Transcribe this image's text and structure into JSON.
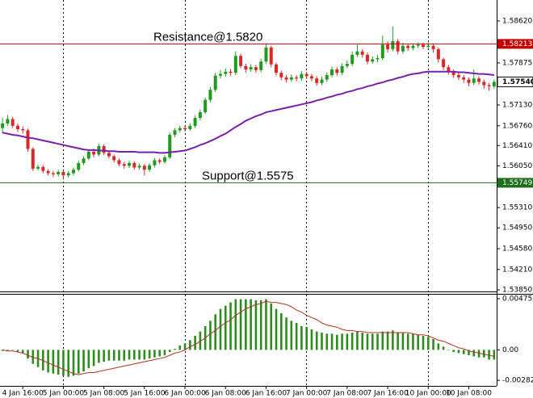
{
  "chart_data": [
    {
      "type": "candlestick",
      "categories": [
        null,
        null,
        null,
        null,
        "4 Jan 16:00",
        null,
        null,
        null,
        null,
        null,
        null,
        null,
        "5 Jan 00:00",
        null,
        null,
        null,
        null,
        null,
        null,
        null,
        "5 Jan 08:00",
        null,
        null,
        null,
        null,
        null,
        null,
        null,
        "5 Jan 16:00",
        null,
        null,
        null,
        null,
        null,
        null,
        null,
        "6 Jan 00:00",
        null,
        null,
        null,
        null,
        null,
        null,
        null,
        "6 Jan 08:00",
        null,
        null,
        null,
        null,
        null,
        null,
        null,
        "6 Jan 16:00",
        null,
        null,
        null,
        null,
        null,
        null,
        null,
        "7 Jan 00:00",
        null,
        null,
        null,
        null,
        null,
        null,
        null,
        "7 Jan 08:00",
        null,
        null,
        null,
        null,
        null,
        null,
        null,
        "7 Jan 16:00",
        null,
        null,
        null,
        null,
        null,
        null,
        null,
        "10 Jan 00:00",
        null,
        null,
        null,
        null,
        null,
        null,
        null,
        "10 Jan 08:00",
        null,
        null,
        null,
        null,
        null
      ],
      "open": [
        1.5672,
        1.568,
        1.5688,
        1.5676,
        1.567,
        1.5668,
        1.5635,
        1.56,
        1.5603,
        1.5596,
        1.5592,
        1.559,
        1.5594,
        1.5588,
        1.5592,
        1.5598,
        1.561,
        1.5618,
        1.563,
        1.5625,
        1.564,
        1.5628,
        1.5622,
        1.5615,
        1.5608,
        1.5605,
        1.561,
        1.5602,
        1.5605,
        1.5598,
        1.5606,
        1.5615,
        1.5612,
        1.562,
        1.566,
        1.5668,
        1.5672,
        1.567,
        1.5676,
        1.569,
        1.57,
        1.5722,
        1.574,
        1.5765,
        1.5768,
        1.5772,
        1.577,
        1.58,
        1.5782,
        1.5776,
        1.578,
        1.5775,
        1.579,
        1.5815,
        1.5785,
        1.577,
        1.5762,
        1.5758,
        1.5762,
        1.576,
        1.5768,
        1.5764,
        1.576,
        1.5752,
        1.5758,
        1.5766,
        1.5776,
        1.577,
        1.5782,
        1.5786,
        1.5802,
        1.5808,
        1.5802,
        1.579,
        1.5794,
        1.5796,
        1.582,
        1.5812,
        1.5826,
        1.5808,
        1.5818,
        1.5814,
        1.5818,
        1.582,
        1.5816,
        1.5818,
        1.5812,
        1.5794,
        1.578,
        1.5772,
        1.5766,
        1.5762,
        1.5758,
        1.5752,
        1.576,
        1.5754,
        1.5748,
        1.5746
      ],
      "high": [
        1.569,
        1.5695,
        1.5692,
        1.568,
        1.5675,
        1.5671,
        1.5638,
        1.5607,
        1.5606,
        1.5599,
        1.5596,
        1.5598,
        1.5597,
        1.5596,
        1.5602,
        1.5614,
        1.5622,
        1.5634,
        1.5636,
        1.5644,
        1.5643,
        1.5632,
        1.5625,
        1.5618,
        1.5612,
        1.5614,
        1.5613,
        1.5609,
        1.5608,
        1.561,
        1.5619,
        1.5618,
        1.5624,
        1.5664,
        1.5672,
        1.5676,
        1.5676,
        1.568,
        1.5694,
        1.5705,
        1.5726,
        1.5745,
        1.577,
        1.5775,
        1.5778,
        1.5777,
        1.5808,
        1.5804,
        1.5786,
        1.5785,
        1.5784,
        1.5795,
        1.5822,
        1.5818,
        1.5788,
        1.5774,
        1.5766,
        1.5767,
        1.5766,
        1.5773,
        1.5772,
        1.5768,
        1.5764,
        1.5763,
        1.5771,
        1.5781,
        1.578,
        1.5787,
        1.5792,
        1.5808,
        1.582,
        1.5812,
        1.5806,
        1.5799,
        1.5802,
        1.5836,
        1.5826,
        1.5852,
        1.583,
        1.5823,
        1.5822,
        1.5822,
        1.5824,
        1.5823,
        1.5824,
        1.5822,
        1.5815,
        1.5797,
        1.5784,
        1.5776,
        1.577,
        1.5766,
        1.5762,
        1.5776,
        1.5764,
        1.5758,
        1.5752,
        1.5758
      ],
      "low": [
        1.5662,
        1.5676,
        1.5672,
        1.5665,
        1.5662,
        1.563,
        1.5596,
        1.5597,
        1.5592,
        1.5588,
        1.5585,
        1.5586,
        1.5582,
        1.5584,
        1.5588,
        1.5595,
        1.5606,
        1.5615,
        1.562,
        1.5622,
        1.5624,
        1.5618,
        1.5611,
        1.5604,
        1.56,
        1.5601,
        1.5598,
        1.5598,
        1.5588,
        1.5594,
        1.5602,
        1.5608,
        1.5609,
        1.5617,
        1.5656,
        1.5664,
        1.5666,
        1.5667,
        1.5672,
        1.5686,
        1.5697,
        1.5718,
        1.5736,
        1.576,
        1.5763,
        1.5765,
        1.5766,
        1.5778,
        1.577,
        1.5772,
        1.577,
        1.5771,
        1.5786,
        1.578,
        1.5765,
        1.5757,
        1.5753,
        1.5754,
        1.5755,
        1.5756,
        1.5759,
        1.5755,
        1.5747,
        1.5748,
        1.5754,
        1.5762,
        1.5765,
        1.5766,
        1.5778,
        1.5782,
        1.5798,
        1.5797,
        1.5785,
        1.5786,
        1.5789,
        1.5792,
        1.5806,
        1.5808,
        1.5803,
        1.5804,
        1.5809,
        1.581,
        1.5814,
        1.5812,
        1.5812,
        1.5806,
        1.5788,
        1.5775,
        1.5767,
        1.5761,
        1.5757,
        1.5752,
        1.5746,
        1.5748,
        1.5749,
        1.5742,
        1.5738,
        1.5742
      ],
      "close": [
        1.568,
        1.5688,
        1.5676,
        1.567,
        1.5668,
        1.5635,
        1.56,
        1.5603,
        1.5596,
        1.5592,
        1.559,
        1.5594,
        1.5588,
        1.5592,
        1.5598,
        1.561,
        1.5618,
        1.563,
        1.5625,
        1.564,
        1.5628,
        1.5622,
        1.5615,
        1.5608,
        1.5605,
        1.561,
        1.5602,
        1.5605,
        1.5598,
        1.5606,
        1.5615,
        1.5612,
        1.562,
        1.566,
        1.5668,
        1.5672,
        1.567,
        1.5676,
        1.569,
        1.57,
        1.5722,
        1.574,
        1.5765,
        1.5768,
        1.5772,
        1.577,
        1.58,
        1.5782,
        1.5776,
        1.578,
        1.5775,
        1.579,
        1.5815,
        1.5785,
        1.577,
        1.5762,
        1.5758,
        1.5762,
        1.576,
        1.5768,
        1.5764,
        1.576,
        1.5752,
        1.5758,
        1.5766,
        1.5776,
        1.577,
        1.5782,
        1.5786,
        1.5802,
        1.5808,
        1.5802,
        1.579,
        1.5794,
        1.5796,
        1.582,
        1.5812,
        1.5826,
        1.5808,
        1.5818,
        1.5814,
        1.5818,
        1.582,
        1.5816,
        1.5818,
        1.5812,
        1.5794,
        1.578,
        1.5772,
        1.5766,
        1.5762,
        1.5758,
        1.5752,
        1.576,
        1.5754,
        1.5748,
        1.5746,
        1.5754
      ],
      "up_color": "#1f9a1f",
      "down_color": "#d42a2a",
      "ma": {
        "color": "#7a1fa8",
        "values": [
          1.5664,
          1.5662,
          1.566,
          1.5659,
          1.5657,
          1.5655,
          1.5654,
          1.5652,
          1.565,
          1.5648,
          1.5646,
          1.5644,
          1.5642,
          1.564,
          1.5638,
          1.5636,
          1.5634,
          1.5633,
          1.5633,
          1.5632,
          1.5632,
          1.5631,
          1.5631,
          1.563,
          1.563,
          1.563,
          1.563,
          1.5629,
          1.5629,
          1.5629,
          1.5629,
          1.5628,
          1.5628,
          1.5629,
          1.563,
          1.5631,
          1.5632,
          1.5635,
          1.5638,
          1.5642,
          1.5645,
          1.5649,
          1.5653,
          1.5658,
          1.5662,
          1.5668,
          1.5674,
          1.5679,
          1.5685,
          1.5689,
          1.5693,
          1.5696,
          1.57,
          1.5702,
          1.5704,
          1.5706,
          1.5708,
          1.571,
          1.5712,
          1.5714,
          1.5716,
          1.5718,
          1.5721,
          1.5723,
          1.5726,
          1.5728,
          1.5731,
          1.5733,
          1.5736,
          1.5738,
          1.5741,
          1.5743,
          1.5746,
          1.5748,
          1.5751,
          1.5753,
          1.5756,
          1.5758,
          1.5761,
          1.5763,
          1.5766,
          1.5768,
          1.5769,
          1.5771,
          1.5772,
          1.5772,
          1.5772,
          1.5772,
          1.5772,
          1.5772,
          1.5771,
          1.5771,
          1.577,
          1.5769,
          1.5768,
          1.5768,
          1.5767,
          1.5766
        ]
      },
      "price_lines": [
        {
          "value": 1.58213,
          "color": "#c00000",
          "annotation": "Resistance@1.5820"
        },
        {
          "value": 1.55749,
          "color": "#1e6e1e",
          "annotation": "Support@1.5575"
        }
      ],
      "current_price": {
        "value": 1.5754,
        "label": "1.57540"
      },
      "ylim": [
        1.53807,
        1.58992
      ],
      "yticks": [
        {
          "value": 1.5862,
          "label": "1.58620"
        },
        1.57875,
        {
          "value": 1.5713,
          "label": "1.57130"
        },
        {
          "value": 1.5676,
          "label": "1.56760"
        },
        {
          "value": 1.5641,
          "label": "1.56410"
        },
        {
          "value": 1.5605,
          "label": "1.56050"
        },
        {
          "value": 1.5531,
          "label": "1.55310"
        },
        {
          "value": 1.5495,
          "label": "1.54950"
        },
        {
          "value": 1.5458,
          "label": "1.54580"
        },
        {
          "value": 1.5421,
          "label": "1.54210"
        },
        {
          "value": 1.5385,
          "label": "1.53850"
        }
      ]
    },
    {
      "type": "bar",
      "color": "#2e8b1e",
      "values": [
        -0.0001,
        -0.0001,
        0.0,
        -0.0002,
        -0.0003,
        -0.0008,
        -0.0013,
        -0.0016,
        -0.0019,
        -0.0021,
        -0.0022,
        -0.0023,
        -0.0024,
        -0.0025,
        -0.0024,
        -0.0022,
        -0.002,
        -0.0017,
        -0.0015,
        -0.0012,
        -0.0011,
        -0.001,
        -0.001,
        -0.001,
        -0.001,
        -0.0009,
        -0.0009,
        -0.0009,
        -0.0009,
        -0.0008,
        -0.0007,
        -0.0006,
        -0.0005,
        -0.0002,
        0.0001,
        0.0004,
        0.0006,
        0.0009,
        0.0013,
        0.0017,
        0.0022,
        0.0027,
        0.0033,
        0.0038,
        0.0041,
        0.0044,
        0.0047,
        0.0047,
        0.0047,
        0.0047,
        0.0046,
        0.0046,
        0.0047,
        0.0043,
        0.0038,
        0.0034,
        0.003,
        0.0027,
        0.0025,
        0.0022,
        0.0021,
        0.0019,
        0.0017,
        0.0016,
        0.0015,
        0.0015,
        0.0014,
        0.0015,
        0.0015,
        0.0016,
        0.0017,
        0.0016,
        0.0015,
        0.0015,
        0.0015,
        0.0017,
        0.0017,
        0.0018,
        0.0016,
        0.0016,
        0.0015,
        0.0015,
        0.0014,
        0.0013,
        0.0012,
        0.001,
        0.0006,
        0.0003,
        0.0,
        -0.0002,
        -0.0003,
        -0.0004,
        -0.0005,
        -0.0006,
        -0.0007,
        -0.0007,
        -0.0009,
        -0.0009
      ],
      "signal": {
        "color": "#b03020",
        "values": [
          0.0,
          -0.0001,
          -0.0001,
          -0.0002,
          -0.0003,
          -0.0005,
          -0.0007,
          -0.0008,
          -0.001,
          -0.0012,
          -0.0014,
          -0.0016,
          -0.0018,
          -0.002,
          -0.0022,
          -0.0023,
          -0.0022,
          -0.0021,
          -0.0021,
          -0.002,
          -0.0019,
          -0.0018,
          -0.0017,
          -0.0016,
          -0.0015,
          -0.0014,
          -0.0013,
          -0.0012,
          -0.0011,
          -0.001,
          -0.0009,
          -0.0008,
          -0.0007,
          -0.0005,
          -0.0003,
          -0.0002,
          0.0,
          0.0003,
          0.0005,
          0.0008,
          0.0011,
          0.0015,
          0.0018,
          0.0022,
          0.0025,
          0.0028,
          0.0032,
          0.0035,
          0.0038,
          0.004,
          0.0042,
          0.0043,
          0.0045,
          0.0044,
          0.0044,
          0.0043,
          0.0042,
          0.004,
          0.0037,
          0.0035,
          0.0032,
          0.003,
          0.0028,
          0.0025,
          0.0023,
          0.0022,
          0.0021,
          0.0019,
          0.0018,
          0.0018,
          0.0017,
          0.0017,
          0.0016,
          0.0016,
          0.0016,
          0.0016,
          0.0016,
          0.0016,
          0.0016,
          0.0016,
          0.0016,
          0.0015,
          0.0014,
          0.0014,
          0.0013,
          0.0011,
          0.0009,
          0.0008,
          0.0006,
          0.0004,
          0.0002,
          0.0001,
          -0.0001,
          -0.0002,
          -0.0003,
          -0.0004,
          -0.0005,
          -0.0006
        ]
      },
      "ylim": [
        -0.00334,
        0.00512
      ],
      "yticks": [
        0.004752,
        {
          "value": 0,
          "label": "0.00"
        },
        -0.002825
      ]
    }
  ]
}
